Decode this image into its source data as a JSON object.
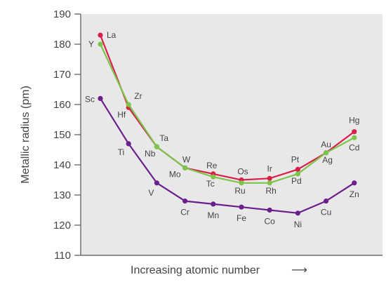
{
  "chart_data": {
    "type": "line",
    "title": "",
    "xlabel": "Increasing atomic number",
    "xlabel_arrow": "⟶",
    "ylabel": "Metallic radius (pm)",
    "ylim": [
      110,
      190
    ],
    "yticks": [
      110,
      120,
      130,
      140,
      150,
      160,
      170,
      180,
      190
    ],
    "grid": false,
    "legend": "none",
    "background_color": "#e8e8e8",
    "axis_color": "#555555",
    "x": [
      1,
      2,
      3,
      4,
      5,
      6,
      7,
      8,
      9,
      10
    ],
    "series": [
      {
        "color": "#6a1f8c",
        "labels": [
          "Sc",
          "Ti",
          "V",
          "Cr",
          "Mn",
          "Fe",
          "Co",
          "Ni",
          "Cu",
          "Zn"
        ],
        "values": [
          162,
          147,
          134,
          128,
          127,
          126,
          125,
          124,
          128,
          134
        ]
      },
      {
        "color": "#d8204a",
        "labels": [
          "La",
          "Hf",
          "Ta",
          "W",
          "Re",
          "Os",
          "Ir",
          "Pt",
          "Au",
          "Hg"
        ],
        "values": [
          183,
          159,
          146,
          139,
          137,
          135,
          135.5,
          138.5,
          144,
          151
        ]
      },
      {
        "color": "#7cc44a",
        "labels": [
          "Y",
          "Zr",
          "Nb",
          "Mo",
          "Tc",
          "Ru",
          "Rh",
          "Pd",
          "Ag",
          "Cd"
        ],
        "values": [
          180,
          160,
          146,
          139,
          136,
          134,
          134,
          137,
          144,
          149
        ]
      }
    ]
  }
}
